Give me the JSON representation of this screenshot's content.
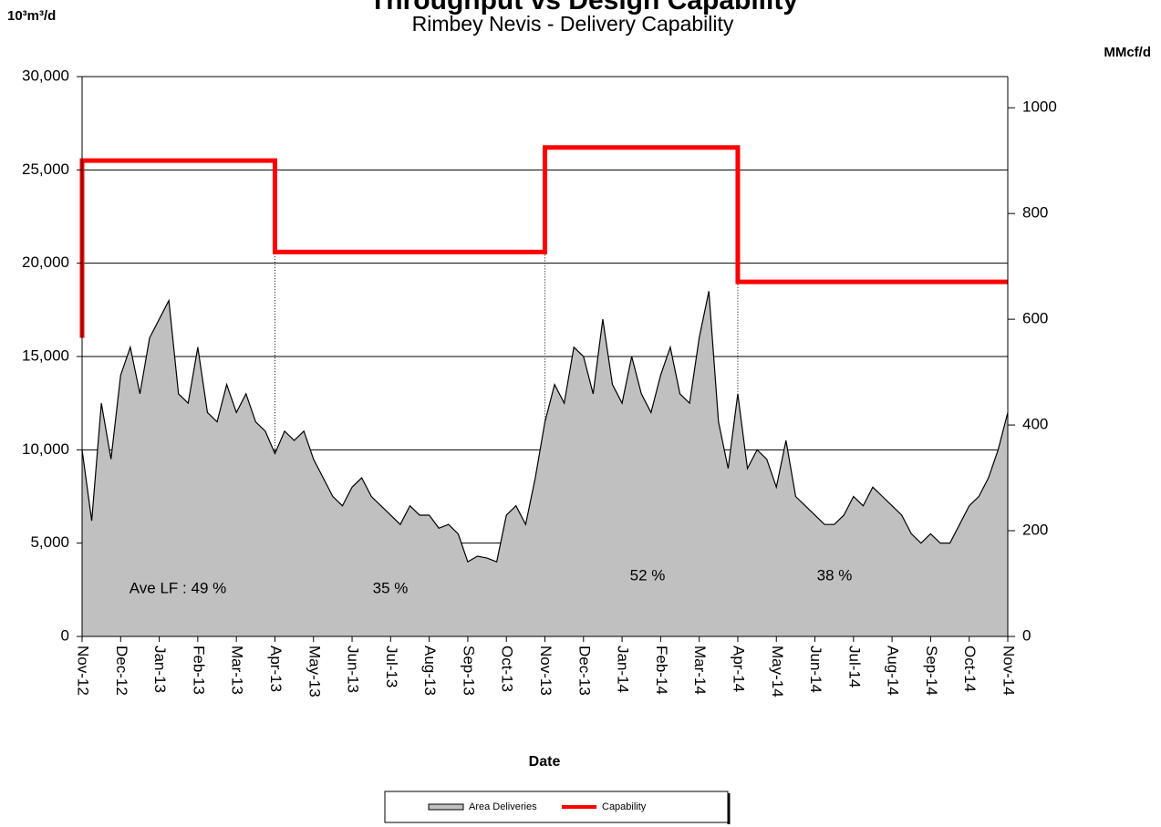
{
  "chart_data": {
    "type": "area",
    "title": "Throughput vs Design Capability",
    "subtitle": "Rimbey Nevis - Delivery Capability",
    "y_label": "10³m³/d",
    "y2_label": "MMcf/d",
    "x_label": "Date",
    "annotations": [
      "Ave LF : 49 %",
      "35 %",
      "52 %",
      "38 %"
    ],
    "categories": [
      "Nov-12",
      null,
      null,
      null,
      "Dec-12",
      null,
      null,
      null,
      "Jan-13",
      null,
      null,
      null,
      "Feb-13",
      null,
      null,
      null,
      "Mar-13",
      null,
      null,
      null,
      "Apr-13",
      null,
      null,
      null,
      "May-13",
      null,
      null,
      null,
      "Jun-13",
      null,
      null,
      null,
      "Jul-13",
      null,
      null,
      null,
      "Aug-13",
      null,
      null,
      null,
      "Sep-13",
      null,
      null,
      null,
      "Oct-13",
      null,
      null,
      null,
      "Nov-13",
      null,
      null,
      null,
      "Dec-13",
      null,
      null,
      null,
      "Jan-14",
      null,
      null,
      null,
      "Feb-14",
      null,
      null,
      null,
      "Mar-14",
      null,
      null,
      null,
      "Apr-14",
      null,
      null,
      null,
      "May-14",
      null,
      null,
      null,
      "Jun-14",
      null,
      null,
      null,
      "Jul-14",
      null,
      null,
      null,
      "Aug-14",
      null,
      null,
      null,
      "Sep-14",
      null,
      null,
      null,
      "Oct-14",
      null,
      null,
      null,
      "Nov-14"
    ],
    "series": [
      {
        "name": "Area Deliveries",
        "color": "#c0c0c0",
        "kind": "area",
        "values": [
          10000,
          6200,
          12500,
          9500,
          14000,
          15500,
          13000,
          16000,
          17000,
          18000,
          13000,
          12500,
          15500,
          12000,
          11500,
          13500,
          12000,
          13000,
          11500,
          11000,
          9800,
          11000,
          10500,
          11000,
          9500,
          8500,
          7500,
          7000,
          8000,
          8500,
          7500,
          7000,
          6500,
          6000,
          7000,
          6500,
          6500,
          5800,
          6000,
          5500,
          4000,
          4300,
          4200,
          4000,
          6500,
          7000,
          6000,
          8500,
          11500,
          13500,
          12500,
          15500,
          15000,
          13000,
          17000,
          13500,
          12500,
          15000,
          13000,
          12000,
          14000,
          15500,
          13000,
          12500,
          16000,
          18500,
          11500,
          9000,
          13000,
          9000,
          10000,
          9500,
          8000,
          10500,
          7500,
          7000,
          6500,
          6000,
          6000,
          6500,
          7500,
          7000,
          8000,
          7500,
          7000,
          6500,
          5500,
          5000,
          5500,
          5000,
          5000,
          6000,
          7000,
          7500,
          8500,
          10000,
          12000
        ]
      },
      {
        "name": "Capability",
        "color": "#ff0000",
        "kind": "step",
        "values": [
          16000,
          25500,
          25500,
          25500,
          25500,
          25500,
          25500,
          25500,
          25500,
          25500,
          25500,
          25500,
          25500,
          25500,
          25500,
          25500,
          25500,
          25500,
          25500,
          25500,
          25500,
          20600,
          20600,
          20600,
          20600,
          20600,
          20600,
          20600,
          20600,
          20600,
          20600,
          20600,
          20600,
          20600,
          20600,
          20600,
          20600,
          20600,
          20600,
          20600,
          20600,
          20600,
          20600,
          20600,
          20600,
          20600,
          20600,
          20600,
          20600,
          26200,
          26200,
          26200,
          26200,
          26200,
          26200,
          26200,
          26200,
          26200,
          26200,
          26200,
          26200,
          26200,
          26200,
          26200,
          26200,
          26200,
          26200,
          26200,
          26200,
          19000,
          19000,
          19000,
          19000,
          19000,
          19000,
          19000,
          19000,
          19000,
          19000,
          19000,
          19000,
          19000,
          19000,
          19000,
          19000,
          19000,
          19000,
          19000,
          19000,
          19000,
          19000,
          19000,
          19000,
          19000,
          19000,
          19000,
          19000
        ]
      }
    ],
    "ylim": [
      0,
      30000
    ],
    "yticks": [
      0,
      {
        "value": 5000,
        "label": "5,000"
      },
      {
        "value": 10000,
        "label": "10,000"
      },
      {
        "value": 15000,
        "label": "15,000"
      },
      {
        "value": 20000,
        "label": "20,000"
      },
      {
        "value": 25000,
        "label": "25,000"
      },
      {
        "value": 30000,
        "label": "30,000"
      }
    ],
    "y2lim": [
      0,
      1059
    ],
    "y2ticks": [
      0,
      200,
      400,
      600,
      800,
      1000
    ],
    "grid": true,
    "legend": "bottom"
  }
}
